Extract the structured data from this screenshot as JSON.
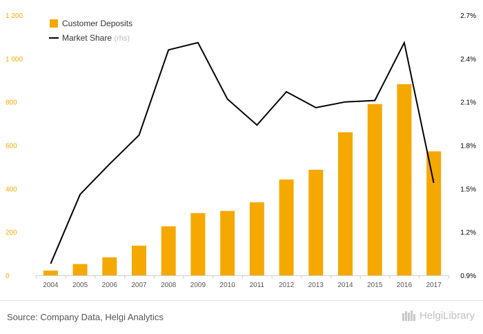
{
  "chart_data": {
    "type": "bar",
    "categories": [
      "2004",
      "2005",
      "2006",
      "2007",
      "2008",
      "2009",
      "2010",
      "2011",
      "2012",
      "2013",
      "2014",
      "2015",
      "2016",
      "2017"
    ],
    "series": [
      {
        "name": "Customer Deposits",
        "type": "bar",
        "axis": "left",
        "color": "#f5a800",
        "values": [
          22,
          52,
          83,
          137,
          226,
          287,
          297,
          337,
          442,
          487,
          660,
          790,
          882,
          572
        ]
      },
      {
        "name": "Market Share",
        "name_suffix": "(rhs)",
        "type": "line",
        "axis": "right",
        "color": "#000000",
        "values": [
          0.98,
          1.46,
          1.67,
          1.87,
          2.46,
          2.51,
          2.12,
          1.94,
          2.17,
          2.06,
          2.1,
          2.11,
          2.51,
          1.54
        ]
      }
    ],
    "ylim_left": [
      0,
      1200
    ],
    "yticks_left": [
      0,
      200,
      400,
      600,
      800,
      1000,
      1200
    ],
    "yticklabels_left": [
      "0",
      "200",
      "400",
      "600",
      "800",
      "1 000",
      "1 200"
    ],
    "ylim_right": [
      0.9,
      2.7
    ],
    "yticks_right": [
      0.9,
      1.2,
      1.5,
      1.8,
      2.1,
      2.4,
      2.7
    ],
    "yticklabels_right": [
      "0.9%",
      "1.2%",
      "1.5%",
      "1.8%",
      "2.1%",
      "2.4%",
      "2.7%"
    ],
    "left_axis_color": "#f5a800",
    "right_axis_color": "#000000",
    "grid": false,
    "legend_position": "top-left"
  },
  "footer": {
    "source": "Source: Company Data, Helgi Analytics",
    "brand": "HelgiLibrary"
  }
}
